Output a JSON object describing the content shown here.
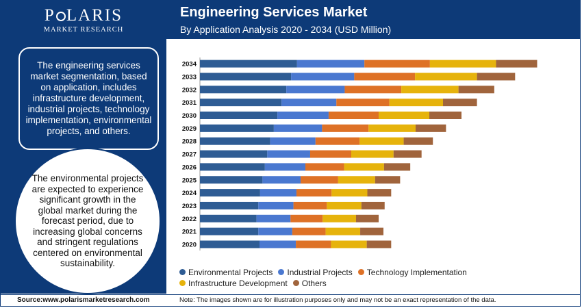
{
  "brand": {
    "name_before": "P",
    "name_after": "LARIS",
    "subtitle": "MARKET RESEARCH"
  },
  "header": {
    "title": "Engineering Services Market",
    "subtitle": "By Application Analysis 2020 - 2034 (USD Million)"
  },
  "left": {
    "summary": "The engineering services market segmentation, based on application, includes infrastructure development, industrial projects, technology implementation, environmental projects, and others.",
    "highlight": "The environmental projects are expected to experience significant growth in the global market during the forecast period, due to increasing global concerns and stringent regulations centered on environmental sustainability."
  },
  "footer": {
    "source": "Source:www.polarismarketresearch.com",
    "note": "Note: The images shown are for illustration purposes only and may not be an exact representation of the data."
  },
  "colors": {
    "brand_navy": "#0d3a78",
    "environmental": "#2e5c94",
    "industrial": "#4a78d0",
    "technology": "#de7126",
    "infrastructure": "#e6b30c",
    "others": "#a0643c"
  },
  "chart_data": {
    "type": "bar",
    "orientation": "horizontal",
    "stacked": true,
    "title": "Engineering Services Market",
    "subtitle": "By Application Analysis 2020 - 2034 (USD Million)",
    "xlabel": "",
    "ylabel": "",
    "categories": [
      "2020",
      "2021",
      "2022",
      "2023",
      "2024",
      "2025",
      "2026",
      "2027",
      "2028",
      "2029",
      "2030",
      "2031",
      "2032",
      "2033",
      "2034"
    ],
    "series": [
      {
        "name": "Environmental Projects",
        "color": "#2e5c94",
        "values": [
          100,
          98,
          95,
          98,
          101,
          105,
          109,
          113,
          118,
          124,
          130,
          137,
          145,
          153,
          163
        ]
      },
      {
        "name": "Industrial Projects",
        "color": "#4a78d0",
        "values": [
          61,
          57,
          57,
          59,
          61,
          64,
          68,
          72,
          76,
          81,
          86,
          92,
          98,
          106,
          113
        ]
      },
      {
        "name": "Technology Implementation",
        "color": "#de7126",
        "values": [
          59,
          56,
          54,
          56,
          59,
          63,
          65,
          69,
          74,
          78,
          84,
          89,
          95,
          102,
          110
        ]
      },
      {
        "name": "Infrastructure Development",
        "color": "#e6b30c",
        "values": [
          60,
          58,
          56,
          58,
          60,
          62,
          67,
          71,
          74,
          79,
          85,
          90,
          96,
          104,
          111
        ]
      },
      {
        "name": "Others",
        "color": "#a0643c",
        "values": [
          41,
          39,
          38,
          39,
          40,
          42,
          44,
          47,
          49,
          51,
          54,
          57,
          60,
          64,
          69
        ]
      }
    ],
    "legend_position": "bottom",
    "grid": false,
    "xlim": [
      0,
      616
    ]
  }
}
